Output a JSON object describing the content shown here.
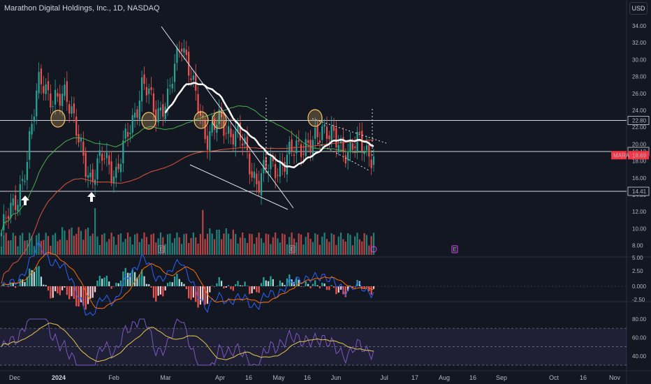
{
  "header": {
    "title": "Marathon Digital Holdings, Inc., 1D, NASDAQ",
    "currency": "USD"
  },
  "price_axis": {
    "ticks": [
      "34.00",
      "32.00",
      "30.00",
      "28.00",
      "26.00",
      "24.00",
      "22.00",
      "20.00",
      "18.00",
      "16.00",
      "14.00",
      "12.00",
      "10.00",
      "8.00",
      "5.00"
    ],
    "markers": [
      {
        "text": "22.80",
        "value": 22.8,
        "kind": "level"
      },
      {
        "text": "19.12",
        "value": 19.12,
        "kind": "level"
      },
      {
        "text": "18.69",
        "value": 18.69,
        "kind": "last"
      },
      {
        "text": "14.41",
        "value": 14.41,
        "kind": "level"
      }
    ],
    "symbol_tag": "MARA",
    "last_color": "#f23645"
  },
  "macd_axis": {
    "ticks": [
      "2.50",
      "0.000",
      "-2.50"
    ]
  },
  "rsi_axis": {
    "ticks": [
      "80.00",
      "60.00",
      "40.00"
    ]
  },
  "time_axis": {
    "labels": [
      {
        "text": "Dec",
        "bold": false
      },
      {
        "text": "2024",
        "bold": true
      },
      {
        "text": "Feb",
        "bold": false
      },
      {
        "text": "Mar",
        "bold": false
      },
      {
        "text": "Apr",
        "bold": false
      },
      {
        "text": "16",
        "bold": false
      },
      {
        "text": "May",
        "bold": false
      },
      {
        "text": "16",
        "bold": false
      },
      {
        "text": "Jun",
        "bold": false
      },
      {
        "text": "Jul",
        "bold": false
      },
      {
        "text": "17",
        "bold": false
      },
      {
        "text": "Aug",
        "bold": false
      },
      {
        "text": "16",
        "bold": false
      },
      {
        "text": "Sep",
        "bold": false
      },
      {
        "text": "Oct",
        "bold": false
      },
      {
        "text": "16",
        "bold": false
      },
      {
        "text": "Nov",
        "bold": false
      }
    ]
  },
  "event_markers": [
    {
      "text": "E",
      "kind": "earnings"
    },
    {
      "text": "E",
      "kind": "earnings"
    },
    {
      "text": "E",
      "kind": "earnings"
    }
  ],
  "colors": {
    "background": "#131722",
    "up": "#26a69a",
    "down": "#ef5350",
    "grid": "#1e222d",
    "ma_fast": "#ffffff",
    "ma_mid": "#4caf50",
    "ma_slow": "#e0533f",
    "macd": "#2962ff",
    "signal": "#ff6d00",
    "rsi": "#7e57c2",
    "rsi_ma": "#e6c94a",
    "circle": "#f5c26b"
  },
  "chart_data": {
    "type": "candlestick",
    "ticker": "MARA",
    "interval": "1D",
    "exchange": "NASDAQ",
    "horizontal_levels": [
      22.8,
      19.12,
      14.41
    ],
    "last_price": 18.69,
    "price_range": [
      5.0,
      35.0
    ],
    "price_path": [
      {
        "date": "Dec",
        "close": 9.5
      },
      {
        "date": "Dec 15",
        "close": 13.0
      },
      {
        "date": "Dec 22",
        "close": 17.5
      },
      {
        "date": "Dec 28",
        "close": 29.0
      },
      {
        "date": "2024",
        "close": 24.0
      },
      {
        "date": "Jan 8",
        "close": 27.0
      },
      {
        "date": "Jan 12",
        "close": 20.0
      },
      {
        "date": "Jan 19",
        "close": 16.0
      },
      {
        "date": "Jan 26",
        "close": 18.5
      },
      {
        "date": "Feb",
        "close": 16.5
      },
      {
        "date": "Feb 9",
        "close": 22.0
      },
      {
        "date": "Feb 16",
        "close": 27.0
      },
      {
        "date": "Feb 21",
        "close": 24.0
      },
      {
        "date": "Feb 26",
        "close": 25.0
      },
      {
        "date": "Mar",
        "close": 33.0
      },
      {
        "date": "Mar 8",
        "close": 26.0
      },
      {
        "date": "Mar 15",
        "close": 21.0
      },
      {
        "date": "Mar 22",
        "close": 22.5
      },
      {
        "date": "Apr",
        "close": 21.5
      },
      {
        "date": "Apr 8",
        "close": 19.5
      },
      {
        "date": "Apr 16",
        "close": 15.0
      },
      {
        "date": "Apr 24",
        "close": 18.0
      },
      {
        "date": "May",
        "close": 17.0
      },
      {
        "date": "May 8",
        "close": 20.5
      },
      {
        "date": "May 16",
        "close": 19.0
      },
      {
        "date": "May 22",
        "close": 22.5
      },
      {
        "date": "May 29",
        "close": 20.0
      },
      {
        "date": "Jun",
        "close": 19.5
      },
      {
        "date": "Jun 10",
        "close": 20.0
      },
      {
        "date": "Jun 20",
        "close": 18.69
      }
    ],
    "panes": [
      "price + volume",
      "MACD",
      "RSI"
    ],
    "macd_range": [
      -2.5,
      5.0
    ],
    "rsi_range": [
      30,
      90
    ]
  }
}
